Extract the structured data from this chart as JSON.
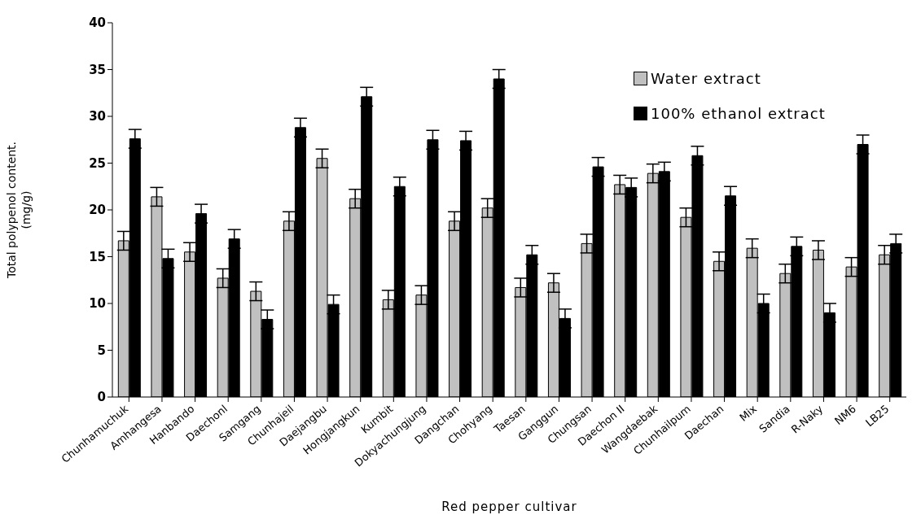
{
  "chart_data": {
    "type": "bar",
    "xlabel": "Red pepper cultivar",
    "ylabel": "Total polypenol content.\n(mg/g)",
    "categories": [
      "Chunhamuchuk",
      "Amhangesa",
      "Hanbando",
      "Daechonl",
      "Samgang",
      "Chunhajeil",
      "Daejangbu",
      "Hongjangkun",
      "Kumbit",
      "Dokyachungjung",
      "Dangchan",
      "Chohyang",
      "Taesan",
      "Ganggun",
      "Chungsan",
      "Daechon II",
      "Wangdaebak",
      "Chunhailpum",
      "Daechan",
      "Mix",
      "Sandia",
      "R-Naky",
      "NM6",
      "LB25"
    ],
    "series": [
      {
        "name": "Water extract",
        "color": "#c0c0c0",
        "values": [
          16.7,
          21.4,
          15.5,
          12.7,
          11.3,
          18.8,
          25.5,
          21.2,
          10.4,
          10.9,
          18.8,
          20.2,
          11.7,
          12.2,
          16.4,
          22.7,
          23.9,
          19.2,
          14.5,
          15.9,
          13.2,
          15.7,
          13.9,
          15.2
        ],
        "errors": [
          1,
          1,
          1,
          1,
          1,
          1,
          1,
          1,
          1,
          1,
          1,
          1,
          1,
          1,
          1,
          1,
          1,
          1,
          1,
          1,
          1,
          1,
          1,
          1
        ]
      },
      {
        "name": "100% ethanol extract",
        "color": "#000000",
        "values": [
          27.6,
          14.8,
          19.6,
          16.9,
          8.3,
          28.8,
          9.9,
          32.1,
          22.5,
          27.5,
          27.4,
          34.0,
          15.2,
          8.4,
          24.6,
          22.4,
          24.1,
          25.8,
          21.5,
          10.0,
          16.1,
          9.0,
          27.0,
          16.4
        ],
        "errors": [
          1,
          1,
          1,
          1,
          1,
          1,
          1,
          1,
          1,
          1,
          1,
          1,
          1,
          1,
          1,
          1,
          1,
          1,
          1,
          1,
          1,
          1,
          1,
          1
        ]
      }
    ],
    "ylim": [
      0,
      40
    ],
    "yticks": [
      0,
      5,
      10,
      15,
      20,
      25,
      30,
      35,
      40
    ],
    "grid": false,
    "legend": "top right"
  }
}
